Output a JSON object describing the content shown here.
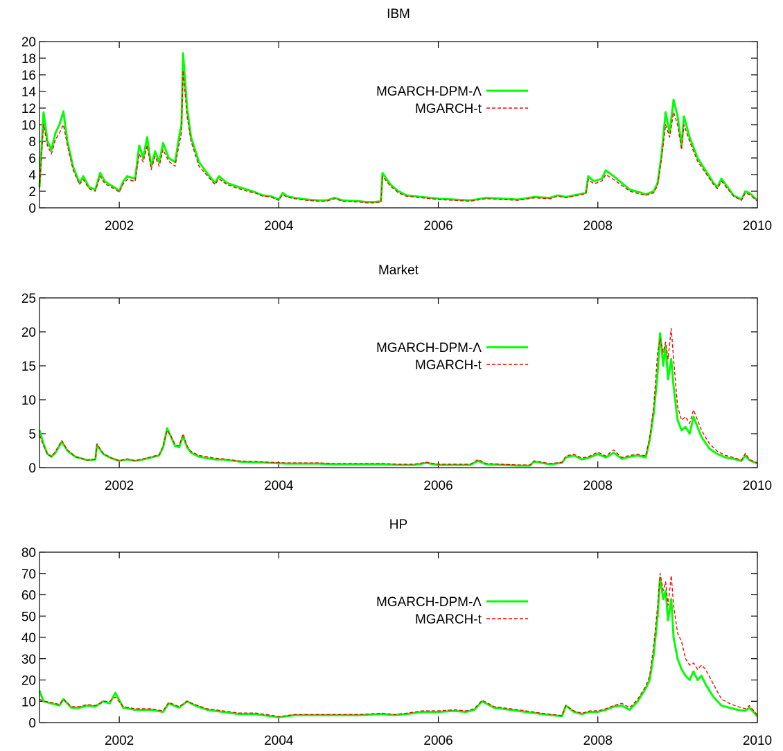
{
  "colors": {
    "mgarch_dpm": "#00ff00",
    "mgarch_t": "#ff0000",
    "axis": "#000000",
    "background": "#ffffff"
  },
  "chart_data": [
    {
      "type": "line",
      "title": "IBM",
      "xlabel": "",
      "ylabel": "",
      "xlim": [
        2001.0,
        2010.0
      ],
      "ylim": [
        0,
        20
      ],
      "xticks": [
        2002,
        2004,
        2006,
        2008,
        2010
      ],
      "xtick_labels": [
        "2002",
        "2004",
        "2006",
        "2008",
        "2010"
      ],
      "yticks": [
        0,
        2,
        4,
        6,
        8,
        10,
        12,
        14,
        16,
        18,
        20
      ],
      "ytick_labels": [
        "0",
        "2",
        "4",
        "6",
        "8",
        "10",
        "12",
        "14",
        "16",
        "18",
        "20"
      ],
      "grid": false,
      "legend_position": "top-center",
      "x": [
        2001.0,
        2001.05,
        2001.1,
        2001.15,
        2001.2,
        2001.25,
        2001.3,
        2001.35,
        2001.42,
        2001.5,
        2001.55,
        2001.62,
        2001.7,
        2001.76,
        2001.82,
        2001.88,
        2001.95,
        2002.0,
        2002.05,
        2002.1,
        2002.2,
        2002.25,
        2002.3,
        2002.35,
        2002.4,
        2002.45,
        2002.5,
        2002.55,
        2002.62,
        2002.7,
        2002.75,
        2002.78,
        2002.8,
        2002.85,
        2002.9,
        2003.0,
        2003.1,
        2003.2,
        2003.25,
        2003.35,
        2003.5,
        2003.6,
        2003.7,
        2003.8,
        2003.9,
        2004.0,
        2004.05,
        2004.1,
        2004.2,
        2004.35,
        2004.5,
        2004.6,
        2004.7,
        2004.8,
        2005.0,
        2005.1,
        2005.2,
        2005.28,
        2005.3,
        2005.4,
        2005.5,
        2005.6,
        2005.8,
        2006.0,
        2006.2,
        2006.4,
        2006.6,
        2006.8,
        2007.0,
        2007.2,
        2007.4,
        2007.5,
        2007.6,
        2007.75,
        2007.85,
        2007.88,
        2007.95,
        2008.05,
        2008.1,
        2008.2,
        2008.3,
        2008.4,
        2008.55,
        2008.6,
        2008.7,
        2008.75,
        2008.8,
        2008.85,
        2008.9,
        2008.95,
        2009.0,
        2009.05,
        2009.08,
        2009.15,
        2009.25,
        2009.35,
        2009.45,
        2009.5,
        2009.55,
        2009.65,
        2009.7,
        2009.8,
        2009.85,
        2009.9,
        2010.0
      ],
      "series": [
        {
          "name": "MGARCH-DPM-Λ",
          "style": "solid",
          "values": [
            2.5,
            11.5,
            8.0,
            7.0,
            9.0,
            10.0,
            11.6,
            8.0,
            5.0,
            3.0,
            3.8,
            2.5,
            2.2,
            4.2,
            3.2,
            2.8,
            2.4,
            2.0,
            3.2,
            3.8,
            3.5,
            7.5,
            6.0,
            8.5,
            5.0,
            6.8,
            5.5,
            7.8,
            6.0,
            5.5,
            8.5,
            10.0,
            18.6,
            12.0,
            8.5,
            5.5,
            4.2,
            3.0,
            3.8,
            3.0,
            2.5,
            2.2,
            1.9,
            1.5,
            1.4,
            1.0,
            1.8,
            1.4,
            1.2,
            1.0,
            0.9,
            0.9,
            1.2,
            0.9,
            0.8,
            0.7,
            0.7,
            0.8,
            4.2,
            2.8,
            2.0,
            1.5,
            1.3,
            1.1,
            1.0,
            0.9,
            1.2,
            1.1,
            1.0,
            1.3,
            1.2,
            1.5,
            1.3,
            1.6,
            1.8,
            3.8,
            3.2,
            3.5,
            4.5,
            3.8,
            3.0,
            2.2,
            1.8,
            1.6,
            2.0,
            3.0,
            6.5,
            11.5,
            9.0,
            13.0,
            11.0,
            7.5,
            11.0,
            8.5,
            6.0,
            4.5,
            3.0,
            2.5,
            3.5,
            2.2,
            1.5,
            1.0,
            2.0,
            1.8,
            0.9
          ]
        },
        {
          "name": "MGARCH-t",
          "style": "dashed",
          "values": [
            2.3,
            10.0,
            7.5,
            6.5,
            8.2,
            9.0,
            10.0,
            7.5,
            4.6,
            2.8,
            3.4,
            2.3,
            2.0,
            3.8,
            2.9,
            2.6,
            2.2,
            1.9,
            2.9,
            3.4,
            3.2,
            6.5,
            5.5,
            7.5,
            4.6,
            6.2,
            5.0,
            7.0,
            5.6,
            5.0,
            7.6,
            9.0,
            16.5,
            11.0,
            8.0,
            5.0,
            3.9,
            2.8,
            3.5,
            2.8,
            2.3,
            2.0,
            1.8,
            1.4,
            1.3,
            0.9,
            1.6,
            1.3,
            1.1,
            0.9,
            0.8,
            0.8,
            1.1,
            0.8,
            0.7,
            0.6,
            0.6,
            0.7,
            3.8,
            2.6,
            1.8,
            1.4,
            1.2,
            1.0,
            0.9,
            0.8,
            1.1,
            1.0,
            0.9,
            1.2,
            1.1,
            1.4,
            1.2,
            1.5,
            1.7,
            3.4,
            2.9,
            3.2,
            4.0,
            3.4,
            2.7,
            2.0,
            1.6,
            1.5,
            1.8,
            2.7,
            6.0,
            10.0,
            8.5,
            11.5,
            10.0,
            7.0,
            10.0,
            8.0,
            5.6,
            4.2,
            2.8,
            2.3,
            3.2,
            2.0,
            1.4,
            0.9,
            1.8,
            1.6,
            0.8
          ]
        }
      ]
    },
    {
      "type": "line",
      "title": "Market",
      "xlabel": "",
      "ylabel": "",
      "xlim": [
        2001.0,
        2010.0
      ],
      "ylim": [
        0,
        25
      ],
      "xticks": [
        2002,
        2004,
        2006,
        2008,
        2010
      ],
      "xtick_labels": [
        "2002",
        "2004",
        "2006",
        "2008",
        "2010"
      ],
      "yticks": [
        0,
        5,
        10,
        15,
        20,
        25
      ],
      "ytick_labels": [
        "0",
        "5",
        "10",
        "15",
        "20",
        "25"
      ],
      "grid": false,
      "legend_position": "top-center",
      "x": [
        2001.0,
        2001.05,
        2001.1,
        2001.15,
        2001.2,
        2001.28,
        2001.35,
        2001.45,
        2001.6,
        2001.7,
        2001.72,
        2001.8,
        2001.9,
        2002.0,
        2002.1,
        2002.2,
        2002.3,
        2002.4,
        2002.5,
        2002.55,
        2002.6,
        2002.65,
        2002.7,
        2002.75,
        2002.8,
        2002.85,
        2002.9,
        2003.0,
        2003.1,
        2003.2,
        2003.3,
        2003.5,
        2003.7,
        2003.9,
        2004.1,
        2004.3,
        2004.5,
        2004.7,
        2005.0,
        2005.3,
        2005.5,
        2005.7,
        2005.85,
        2006.0,
        2006.2,
        2006.4,
        2006.5,
        2006.6,
        2006.8,
        2007.0,
        2007.15,
        2007.2,
        2007.4,
        2007.55,
        2007.6,
        2007.7,
        2007.8,
        2007.9,
        2008.0,
        2008.1,
        2008.2,
        2008.3,
        2008.4,
        2008.5,
        2008.6,
        2008.65,
        2008.7,
        2008.75,
        2008.78,
        2008.82,
        2008.85,
        2008.88,
        2008.92,
        2008.95,
        2009.0,
        2009.05,
        2009.1,
        2009.15,
        2009.2,
        2009.3,
        2009.4,
        2009.5,
        2009.6,
        2009.7,
        2009.8,
        2009.85,
        2009.9,
        2010.0
      ],
      "series": [
        {
          "name": "MGARCH-DPM-Λ",
          "style": "solid",
          "values": [
            5.5,
            3.5,
            2.0,
            1.6,
            2.2,
            3.8,
            2.5,
            1.6,
            1.1,
            1.2,
            3.3,
            2.0,
            1.4,
            1.0,
            1.2,
            1.0,
            1.2,
            1.5,
            1.8,
            3.0,
            5.8,
            4.5,
            3.2,
            3.0,
            4.6,
            3.0,
            2.2,
            1.6,
            1.4,
            1.2,
            1.2,
            0.9,
            0.8,
            0.7,
            0.6,
            0.6,
            0.6,
            0.5,
            0.5,
            0.5,
            0.4,
            0.4,
            0.7,
            0.4,
            0.4,
            0.4,
            1.0,
            0.5,
            0.4,
            0.3,
            0.3,
            0.9,
            0.5,
            0.7,
            1.5,
            1.8,
            1.2,
            1.5,
            2.0,
            1.5,
            2.2,
            1.3,
            1.6,
            1.8,
            1.5,
            4.0,
            8.0,
            14.0,
            19.8,
            15.0,
            18.0,
            13.0,
            16.0,
            12.0,
            7.0,
            5.5,
            6.0,
            5.0,
            7.5,
            4.5,
            2.8,
            2.0,
            1.5,
            1.3,
            1.0,
            1.8,
            1.1,
            0.6
          ]
        },
        {
          "name": "MGARCH-t",
          "style": "dashed",
          "values": [
            4.8,
            3.2,
            2.0,
            1.6,
            2.4,
            4.0,
            2.6,
            1.6,
            1.1,
            1.2,
            3.5,
            2.1,
            1.4,
            1.0,
            1.3,
            1.0,
            1.3,
            1.6,
            1.9,
            3.2,
            5.5,
            4.6,
            3.4,
            3.2,
            5.0,
            3.2,
            2.4,
            1.8,
            1.6,
            1.4,
            1.3,
            1.0,
            0.9,
            0.8,
            0.7,
            0.7,
            0.7,
            0.6,
            0.6,
            0.6,
            0.5,
            0.5,
            0.8,
            0.5,
            0.5,
            0.5,
            1.2,
            0.6,
            0.5,
            0.4,
            0.4,
            1.0,
            0.6,
            0.8,
            1.7,
            2.0,
            1.4,
            1.7,
            2.3,
            1.7,
            2.6,
            1.5,
            1.8,
            2.0,
            1.7,
            4.5,
            9.0,
            17.0,
            19.0,
            17.0,
            18.5,
            16.0,
            20.5,
            16.0,
            9.0,
            7.0,
            7.5,
            6.5,
            8.5,
            5.5,
            3.5,
            2.4,
            1.8,
            1.5,
            1.1,
            2.1,
            1.2,
            0.7
          ]
        }
      ]
    },
    {
      "type": "line",
      "title": "HP",
      "xlabel": "",
      "ylabel": "",
      "xlim": [
        2001.0,
        2010.0
      ],
      "ylim": [
        0,
        80
      ],
      "xticks": [
        2002,
        2004,
        2006,
        2008,
        2010
      ],
      "xtick_labels": [
        "2002",
        "2004",
        "2006",
        "2008",
        "2010"
      ],
      "yticks": [
        0,
        10,
        20,
        30,
        40,
        50,
        60,
        70,
        80
      ],
      "ytick_labels": [
        "0",
        "10",
        "20",
        "30",
        "40",
        "50",
        "60",
        "70",
        "80"
      ],
      "grid": false,
      "legend_position": "top-center",
      "x": [
        2001.0,
        2001.05,
        2001.15,
        2001.25,
        2001.3,
        2001.4,
        2001.5,
        2001.6,
        2001.7,
        2001.8,
        2001.88,
        2001.95,
        2002.05,
        2002.2,
        2002.4,
        2002.55,
        2002.62,
        2002.75,
        2002.85,
        2002.95,
        2003.1,
        2003.3,
        2003.5,
        2003.7,
        2003.9,
        2004.0,
        2004.2,
        2004.5,
        2004.8,
        2005.0,
        2005.3,
        2005.45,
        2005.6,
        2005.8,
        2006.0,
        2006.2,
        2006.35,
        2006.45,
        2006.55,
        2006.7,
        2006.9,
        2007.1,
        2007.3,
        2007.55,
        2007.6,
        2007.7,
        2007.8,
        2007.9,
        2008.0,
        2008.1,
        2008.2,
        2008.3,
        2008.4,
        2008.5,
        2008.6,
        2008.65,
        2008.7,
        2008.75,
        2008.78,
        2008.82,
        2008.85,
        2008.88,
        2008.92,
        2008.95,
        2009.0,
        2009.05,
        2009.1,
        2009.15,
        2009.2,
        2009.25,
        2009.3,
        2009.35,
        2009.45,
        2009.55,
        2009.65,
        2009.75,
        2009.85,
        2009.9,
        2010.0
      ],
      "series": [
        {
          "name": "MGARCH-DPM-Λ",
          "style": "solid",
          "values": [
            15.0,
            10.0,
            9.0,
            8.0,
            11.0,
            7.0,
            7.0,
            8.0,
            7.5,
            10.0,
            9.0,
            14.0,
            7.0,
            6.0,
            6.0,
            5.0,
            9.0,
            7.0,
            10.0,
            8.0,
            6.0,
            5.0,
            4.0,
            4.0,
            3.0,
            2.5,
            3.5,
            3.5,
            3.5,
            3.5,
            4.0,
            3.5,
            4.0,
            5.0,
            5.0,
            5.5,
            5.0,
            6.0,
            10.0,
            7.0,
            6.0,
            5.0,
            4.0,
            3.0,
            8.0,
            5.0,
            4.0,
            5.0,
            5.0,
            6.0,
            7.5,
            8.0,
            6.0,
            10.0,
            16.0,
            20.0,
            32.0,
            50.0,
            68.0,
            58.0,
            62.0,
            48.0,
            58.0,
            40.0,
            30.0,
            25.0,
            22.0,
            20.0,
            24.0,
            20.0,
            22.0,
            18.0,
            12.0,
            8.0,
            7.0,
            6.0,
            5.5,
            7.0,
            3.0
          ]
        },
        {
          "name": "MGARCH-t",
          "style": "dashed",
          "values": [
            11.0,
            10.0,
            9.5,
            8.5,
            11.0,
            7.5,
            7.5,
            8.5,
            8.0,
            10.0,
            10.0,
            12.0,
            7.5,
            6.5,
            6.5,
            5.5,
            9.5,
            7.5,
            10.0,
            8.5,
            6.5,
            5.5,
            4.5,
            4.5,
            3.5,
            2.8,
            3.8,
            3.8,
            3.8,
            3.8,
            4.4,
            3.8,
            4.4,
            5.5,
            5.5,
            6.0,
            5.5,
            6.5,
            10.5,
            7.5,
            6.5,
            5.5,
            4.4,
            3.3,
            8.0,
            5.5,
            4.4,
            5.5,
            5.5,
            6.5,
            8.0,
            9.0,
            7.0,
            11.0,
            17.0,
            22.0,
            36.0,
            55.0,
            70.0,
            62.0,
            66.0,
            55.0,
            69.0,
            55.0,
            42.0,
            38.0,
            30.0,
            27.0,
            28.0,
            25.0,
            27.0,
            25.0,
            18.0,
            11.0,
            9.0,
            7.5,
            6.5,
            8.0,
            3.5
          ]
        }
      ]
    }
  ]
}
